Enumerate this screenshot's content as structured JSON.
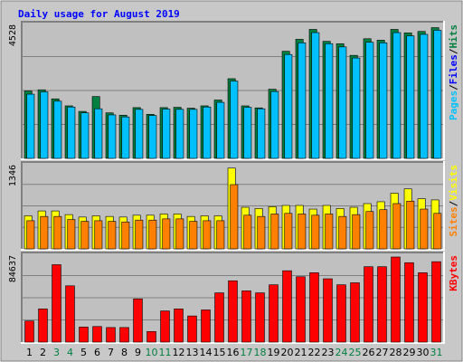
{
  "chart_data": {
    "type": "bar",
    "title": "Daily usage for August 2019",
    "categories": [
      "1",
      "2",
      "3",
      "4",
      "5",
      "6",
      "7",
      "8",
      "9",
      "10",
      "11",
      "12",
      "13",
      "14",
      "15",
      "16",
      "17",
      "18",
      "19",
      "20",
      "21",
      "22",
      "23",
      "24",
      "25",
      "26",
      "27",
      "28",
      "29",
      "30",
      "31"
    ],
    "weekend_days": [
      "3",
      "4",
      "10",
      "11",
      "17",
      "18",
      "24",
      "25",
      "31"
    ],
    "colors": {
      "background": "#c0c0c0",
      "hits": "#008040",
      "files": "#00c0ff",
      "pages": "#00c0ff",
      "visits": "#ffff00",
      "sites": "#ff8000",
      "kbytes": "#ff0000",
      "title": "#0000ff",
      "weekday_label": "#000000",
      "weekend_label": "#008040"
    },
    "panels": [
      {
        "name": "hits-files-pages",
        "ylim": [
          0,
          4528
        ],
        "ymax_label": "4528",
        "legend": [
          {
            "text": "Pages",
            "color": "#00c0ff"
          },
          {
            "text": "/",
            "color": "#000000"
          },
          {
            "text": "Files",
            "color": "#0000ff"
          },
          {
            "text": "/",
            "color": "#000000"
          },
          {
            "text": "Hits",
            "color": "#008040"
          }
        ],
        "series": [
          {
            "name": "Hits",
            "color": "#008040",
            "values": [
              2310,
              2350,
              2040,
              1800,
              1610,
              2120,
              1560,
              1480,
              1740,
              1510,
              1740,
              1750,
              1720,
              1800,
              2000,
              2730,
              1800,
              1730,
              2370,
              3670,
              4080,
              4420,
              4010,
              3930,
              3530,
              4100,
              4050,
              4420,
              4300,
              4350,
              4480
            ]
          },
          {
            "name": "Files",
            "color": "#00c0ff",
            "values": [
              2200,
              2280,
              1960,
              1760,
              1560,
              1700,
              1490,
              1420,
              1680,
              1470,
              1690,
              1680,
              1680,
              1760,
              1920,
              2650,
              1750,
              1700,
              2290,
              3560,
              3960,
              4310,
              3930,
              3820,
              3440,
              3980,
              3960,
              4310,
              4200,
              4250,
              4390
            ]
          }
        ]
      },
      {
        "name": "visits-sites",
        "ylim": [
          0,
          1346
        ],
        "ymax_label": "1346",
        "legend": [
          {
            "text": "Sites",
            "color": "#ff8000"
          },
          {
            "text": "/",
            "color": "#000000"
          },
          {
            "text": "Visits",
            "color": "#ffff00"
          }
        ],
        "series": [
          {
            "name": "Visits",
            "color": "#ffff00",
            "values": [
              540,
              620,
              620,
              560,
              520,
              540,
              530,
              520,
              550,
              550,
              570,
              570,
              530,
              540,
              540,
              1320,
              680,
              660,
              690,
              710,
              710,
              650,
              710,
              660,
              680,
              740,
              770,
              910,
              980,
              820,
              800
            ]
          },
          {
            "name": "Sites",
            "color": "#ff8000",
            "values": [
              460,
              530,
              530,
              480,
              450,
              460,
              450,
              440,
              470,
              470,
              490,
              490,
              450,
              460,
              460,
              1050,
              550,
              530,
              570,
              580,
              570,
              550,
              570,
              530,
              560,
              610,
              640,
              740,
              780,
              650,
              580
            ]
          }
        ]
      },
      {
        "name": "kbytes",
        "ylim": [
          0,
          84637
        ],
        "ymax_label": "84637",
        "legend": [
          {
            "text": "KBytes",
            "color": "#ff0000"
          }
        ],
        "series": [
          {
            "name": "KBytes",
            "color": "#ff0000",
            "values": [
              21000,
              33000,
              77000,
              56000,
              15000,
              15500,
              14500,
              14500,
              43000,
              10500,
              31000,
              33000,
              26000,
              32000,
              49000,
              61000,
              51000,
              49000,
              57000,
              71000,
              65000,
              69000,
              63000,
              57000,
              59000,
              75000,
              75000,
              86000,
              79000,
              69000,
              80000
            ]
          }
        ]
      }
    ]
  }
}
